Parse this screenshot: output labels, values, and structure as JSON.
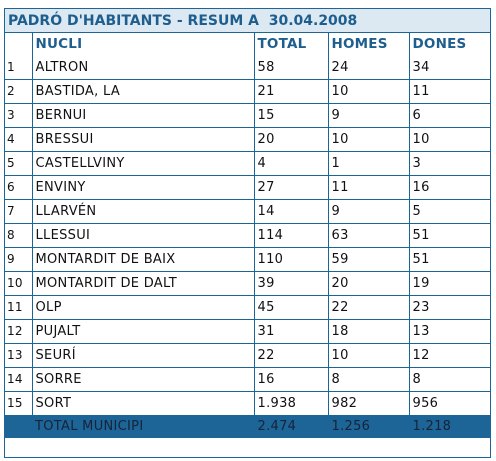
{
  "title": "PADRÓ D'HABITANTS - RESUM A  30.04.2008",
  "headers": [
    "",
    "NUCLI",
    "TOTAL",
    "HOMES",
    "DONES"
  ],
  "rows": [
    [
      "1",
      "ALTRON",
      "58",
      "24",
      "34"
    ],
    [
      "2",
      "BASTIDA, LA",
      "21",
      "10",
      "11"
    ],
    [
      "3",
      "BERNUI",
      "15",
      "9",
      "6"
    ],
    [
      "4",
      "BRESSUI",
      "20",
      "10",
      "10"
    ],
    [
      "5",
      "CASTELLVINY",
      "4",
      "1",
      "3"
    ],
    [
      "6",
      "ENVINY",
      "27",
      "11",
      "16"
    ],
    [
      "7",
      "LLARVÉN",
      "14",
      "9",
      "5"
    ],
    [
      "8",
      "LLESSUI",
      "114",
      "63",
      "51"
    ],
    [
      "9",
      "MONTARDIT DE BAIX",
      "110",
      "59",
      "51"
    ],
    [
      "10",
      "MONTARDIT DE DALT",
      "39",
      "20",
      "19"
    ],
    [
      "11",
      "OLP",
      "45",
      "22",
      "23"
    ],
    [
      "12",
      "PUJALT",
      "31",
      "18",
      "13"
    ],
    [
      "13",
      "SEURÍ",
      "22",
      "10",
      "12"
    ],
    [
      "14",
      "SORRE",
      "16",
      "8",
      "8"
    ],
    [
      "15",
      "SORT",
      "1.938",
      "982",
      "956"
    ]
  ],
  "total": [
    "",
    "TOTAL MUNICIPI",
    "2.474",
    "1.256",
    "1.218"
  ],
  "colors": {
    "border": "#1d6597",
    "header_text": "#1d5e8e",
    "title_bg": "#dce9f2",
    "total_bg": "#1d6597"
  }
}
